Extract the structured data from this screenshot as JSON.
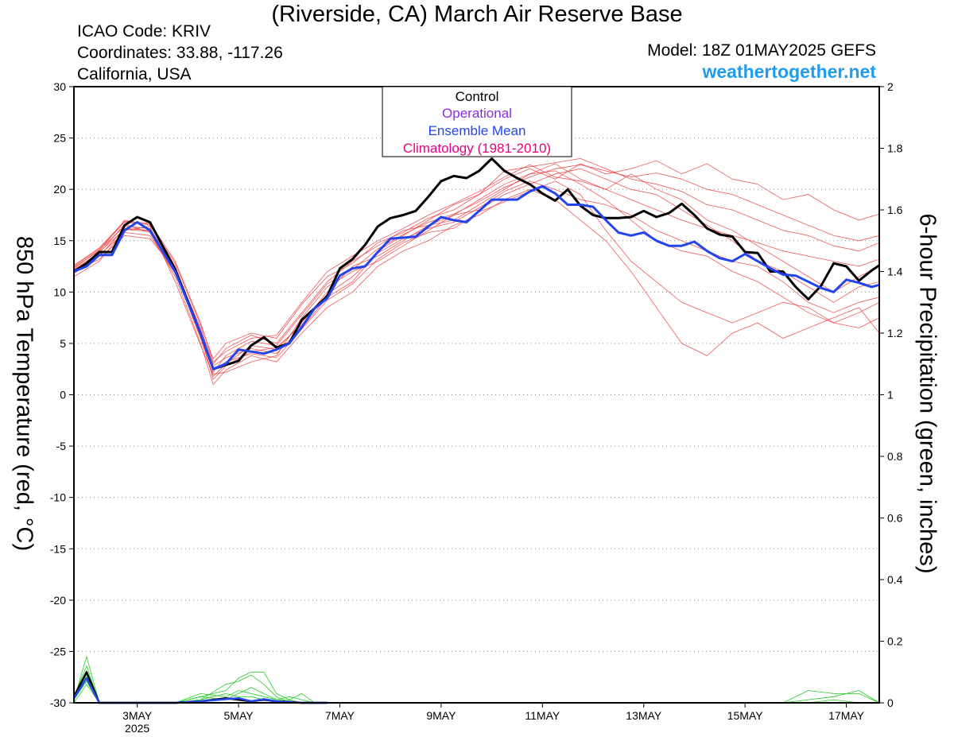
{
  "header": {
    "title": "(Riverside, CA) March Air Reserve Base",
    "icao": "ICAO Code: KRIV",
    "coordinates": "Coordinates: 33.88, -117.26",
    "region": "California, USA",
    "model": "Model: 18Z 01MAY2025 GEFS",
    "site": "weathertogether.net"
  },
  "legend": {
    "control": "Control",
    "operational": "Operational",
    "ensemble_mean": "Ensemble Mean",
    "climatology": "Climatology (1981-2010)"
  },
  "colors": {
    "control": "#000000",
    "operational": "#8a2be2",
    "ensemble_mean": "#2244ee",
    "climatology": "#e6007e",
    "members": "#ee3a3a",
    "precip": "#22cc22",
    "site": "#1e9df0"
  },
  "chart_data": {
    "type": "line",
    "title": "(Riverside, CA) March Air Reserve Base",
    "ylabel": "850 hPa Temperature (red, °C)",
    "y2label": "6-hour Precipitation (green, inches)",
    "ylim": [
      -30,
      30
    ],
    "y2lim": [
      0,
      2
    ],
    "yticks": [
      30,
      25,
      20,
      15,
      10,
      5,
      0,
      -5,
      -10,
      -15,
      -20,
      -25,
      -30
    ],
    "y2ticks": [
      2,
      1.8,
      1.6,
      1.4,
      1.2,
      1,
      0.8,
      0.6,
      0.4,
      0.2,
      0
    ],
    "x_unit": "days since 18Z 01MAY2025",
    "xlim": [
      0,
      15.9
    ],
    "xticks": [
      {
        "x": 1.25,
        "label": "3MAY",
        "sub": "2025"
      },
      {
        "x": 3.25,
        "label": "5MAY",
        "sub": ""
      },
      {
        "x": 5.25,
        "label": "7MAY",
        "sub": ""
      },
      {
        "x": 7.25,
        "label": "9MAY",
        "sub": ""
      },
      {
        "x": 9.25,
        "label": "11MAY",
        "sub": ""
      },
      {
        "x": 11.25,
        "label": "13MAY",
        "sub": ""
      },
      {
        "x": 13.25,
        "label": "15MAY",
        "sub": ""
      },
      {
        "x": 15.25,
        "label": "17MAY",
        "sub": ""
      }
    ],
    "grid": "horizontal dotted",
    "series": [
      {
        "name": "Control",
        "axis": "left",
        "x": [
          0,
          0.25,
          0.5,
          0.75,
          1.0,
          1.25,
          1.5,
          2.0,
          2.5,
          2.75,
          3.0,
          3.25,
          3.5,
          3.75,
          4.0,
          4.25,
          4.5,
          4.75,
          5.0,
          5.25,
          5.5,
          5.75,
          6.0,
          6.25,
          6.5,
          6.75,
          7.0,
          7.25,
          7.5,
          7.75,
          8.0,
          8.25,
          8.5,
          8.75,
          9.0,
          9.25,
          9.5,
          9.75,
          10.0,
          10.25,
          10.5,
          10.75,
          11.0,
          11.25,
          11.5,
          11.75,
          12.0,
          12.25,
          12.5,
          12.75,
          13.0,
          13.25,
          13.5,
          13.75,
          14.0,
          14.25,
          14.5,
          14.75,
          15.0,
          15.25,
          15.5,
          15.75,
          15.9
        ],
        "values": [
          12.0,
          12.8,
          13.9,
          13.9,
          16.5,
          17.3,
          16.8,
          12.2,
          6.0,
          2.5,
          2.9,
          3.3,
          4.8,
          5.6,
          4.6,
          5.0,
          7.3,
          8.4,
          9.6,
          12.3,
          13.2,
          14.6,
          16.4,
          17.2,
          17.5,
          17.9,
          19.3,
          20.8,
          21.3,
          21.1,
          21.8,
          23.0,
          21.8,
          21.1,
          20.5,
          19.6,
          18.9,
          20.0,
          18.4,
          17.5,
          17.2,
          17.2,
          17.3,
          17.9,
          17.3,
          17.7,
          18.6,
          17.5,
          16.2,
          15.6,
          15.4,
          13.9,
          13.8,
          12.0,
          12.0,
          10.5,
          9.3,
          10.6,
          12.8,
          12.5,
          11.1,
          12.1,
          12.6
        ]
      },
      {
        "name": "Ensemble Mean",
        "axis": "left",
        "x": [
          0,
          0.25,
          0.5,
          0.75,
          1.0,
          1.25,
          1.5,
          2.0,
          2.5,
          2.75,
          3.0,
          3.25,
          3.5,
          3.75,
          4.0,
          4.25,
          4.5,
          4.75,
          5.0,
          5.25,
          5.5,
          5.75,
          6.0,
          6.25,
          6.5,
          6.75,
          7.0,
          7.25,
          7.5,
          7.75,
          8.0,
          8.25,
          8.5,
          8.75,
          9.0,
          9.25,
          9.5,
          9.75,
          10.0,
          10.25,
          10.5,
          10.75,
          11.0,
          11.25,
          11.5,
          11.75,
          12.0,
          12.25,
          12.5,
          12.75,
          13.0,
          13.25,
          13.5,
          13.75,
          14.0,
          14.25,
          14.5,
          14.75,
          15.0,
          15.25,
          15.5,
          15.75,
          15.9
        ],
        "values": [
          12.0,
          12.5,
          13.6,
          13.6,
          16.0,
          16.8,
          16.0,
          12.0,
          6.0,
          2.5,
          3.0,
          4.4,
          4.2,
          4.0,
          4.4,
          5.0,
          6.6,
          8.4,
          9.4,
          11.6,
          12.3,
          12.5,
          13.9,
          15.2,
          15.3,
          15.4,
          16.4,
          17.3,
          17.0,
          16.8,
          17.9,
          19.0,
          19.0,
          19.0,
          19.8,
          20.3,
          19.6,
          18.5,
          18.5,
          18.3,
          17.0,
          15.8,
          15.5,
          15.8,
          15.0,
          14.5,
          14.5,
          14.9,
          14.0,
          13.3,
          13.0,
          13.7,
          13.0,
          12.3,
          11.7,
          11.6,
          11.0,
          10.4,
          10.0,
          11.2,
          10.9,
          10.5,
          10.7
        ]
      },
      {
        "name": "",
        "axis": "right",
        "x": [
          0,
          0.25,
          0.5,
          0.75,
          1.0,
          1.5,
          2.0,
          2.5,
          3.0,
          3.25,
          3.5,
          3.75,
          4.0,
          4.25,
          4.5,
          5.0
        ],
        "values": [
          0.02,
          0.1,
          0.0,
          0.0,
          0.0,
          0.0,
          0.0,
          0.005,
          0.015,
          0.01,
          0.005,
          0.01,
          0.005,
          0.003,
          0.0,
          0.0
        ]
      },
      {
        "name": "",
        "axis": "right",
        "x": [
          0,
          0.25,
          0.5,
          0.75,
          1.0,
          1.5,
          2.0,
          2.5,
          3.0,
          3.25,
          3.5,
          3.75,
          4.0,
          4.25,
          4.5,
          5.0
        ],
        "values": [
          0.015,
          0.08,
          0.0,
          0.0,
          0.0,
          0.0,
          0.0,
          0.005,
          0.012,
          0.015,
          0.005,
          0.012,
          0.005,
          0.002,
          0.0,
          0.0
        ]
      }
    ],
    "ensemble_members_temp": {
      "x": [
        0,
        0.5,
        1.0,
        1.5,
        2.0,
        2.5,
        2.75,
        3.0,
        3.5,
        4.0,
        4.5,
        5.0,
        5.5,
        6.0,
        6.5,
        7.0,
        7.5,
        8.0,
        8.5,
        9.0,
        9.5,
        10.0,
        10.5,
        11.0,
        11.5,
        12.0,
        12.5,
        13.0,
        13.5,
        14.0,
        14.5,
        15.0,
        15.5,
        15.9
      ],
      "members": [
        [
          12.5,
          14.2,
          16.8,
          16.6,
          12.5,
          6.0,
          2.8,
          3.6,
          4.5,
          4.0,
          6.5,
          9.5,
          11.0,
          14.0,
          15.5,
          17.0,
          18.5,
          19.5,
          21.0,
          22.0,
          21.0,
          22.5,
          21.5,
          22.0,
          22.8,
          21.5,
          22.5,
          21.0,
          20.5,
          19.0,
          19.5,
          18.0,
          17.0,
          17.6
        ],
        [
          11.8,
          13.5,
          16.2,
          16.0,
          12.0,
          5.5,
          1.8,
          3.0,
          4.8,
          4.4,
          7.0,
          10.0,
          12.5,
          13.5,
          15.0,
          16.5,
          17.0,
          18.5,
          20.0,
          21.5,
          22.5,
          21.0,
          20.0,
          21.5,
          20.0,
          19.0,
          17.0,
          16.0,
          14.5,
          13.0,
          11.5,
          10.0,
          11.5,
          12.5
        ],
        [
          12.2,
          13.8,
          16.6,
          15.8,
          11.5,
          5.0,
          1.0,
          2.4,
          3.8,
          3.2,
          6.0,
          8.5,
          10.0,
          12.5,
          14.0,
          15.0,
          16.5,
          17.5,
          19.0,
          20.0,
          19.0,
          17.0,
          15.0,
          12.0,
          8.5,
          5.0,
          3.8,
          6.0,
          7.0,
          5.5,
          6.5,
          7.5,
          8.5,
          6.0
        ],
        [
          12.0,
          13.2,
          15.5,
          15.2,
          12.2,
          6.5,
          3.0,
          4.5,
          5.8,
          5.0,
          8.0,
          11.0,
          13.0,
          14.5,
          16.0,
          16.5,
          17.5,
          18.0,
          19.5,
          20.5,
          21.5,
          22.0,
          21.0,
          20.0,
          19.5,
          18.0,
          16.5,
          15.0,
          13.0,
          12.0,
          10.5,
          9.0,
          10.5,
          11.0
        ],
        [
          11.5,
          13.0,
          16.0,
          16.4,
          11.0,
          4.8,
          2.0,
          2.2,
          3.2,
          3.8,
          7.5,
          10.5,
          12.0,
          13.0,
          14.5,
          16.0,
          17.5,
          19.0,
          20.5,
          21.5,
          21.8,
          20.5,
          19.0,
          17.0,
          15.0,
          14.0,
          13.5,
          12.0,
          11.0,
          9.5,
          8.0,
          7.0,
          6.5,
          7.5
        ],
        [
          12.4,
          14.0,
          17.0,
          16.5,
          12.8,
          6.8,
          3.5,
          5.0,
          6.0,
          5.5,
          8.8,
          11.5,
          12.8,
          14.8,
          15.8,
          17.2,
          18.0,
          19.5,
          21.8,
          22.2,
          22.6,
          23.0,
          22.0,
          21.0,
          20.5,
          19.8,
          18.5,
          18.0,
          17.0,
          16.0,
          15.5,
          14.5,
          14.0,
          14.8
        ],
        [
          11.9,
          13.6,
          15.8,
          15.5,
          11.8,
          5.8,
          1.5,
          2.8,
          4.2,
          4.6,
          6.8,
          9.8,
          11.5,
          13.8,
          15.2,
          16.2,
          16.8,
          18.2,
          19.8,
          20.8,
          20.0,
          19.0,
          18.5,
          17.5,
          16.0,
          15.0,
          14.0,
          13.0,
          12.5,
          11.0,
          9.0,
          8.0,
          9.0,
          9.5
        ],
        [
          12.3,
          14.1,
          16.4,
          16.2,
          12.4,
          6.2,
          2.2,
          3.8,
          5.2,
          4.8,
          7.8,
          10.8,
          12.2,
          14.2,
          15.6,
          16.8,
          17.6,
          18.8,
          20.2,
          21.2,
          22.0,
          22.4,
          21.8,
          21.2,
          21.6,
          21.0,
          20.0,
          19.5,
          18.5,
          17.5,
          16.5,
          15.5,
          15.0,
          15.5
        ],
        [
          12.1,
          13.9,
          16.1,
          15.9,
          11.9,
          5.6,
          2.4,
          3.2,
          4.0,
          3.6,
          6.4,
          9.2,
          10.8,
          13.2,
          14.8,
          15.8,
          16.2,
          17.8,
          18.8,
          19.8,
          20.8,
          19.5,
          16.0,
          13.0,
          11.0,
          9.0,
          8.0,
          7.0,
          8.0,
          9.0,
          8.5,
          7.0,
          8.0,
          9.0
        ],
        [
          12.6,
          14.3,
          16.9,
          16.7,
          13.0,
          7.0,
          3.2,
          4.2,
          5.5,
          5.8,
          9.0,
          12.0,
          13.5,
          15.0,
          16.2,
          17.5,
          18.6,
          19.8,
          21.2,
          22.4,
          21.2,
          20.8,
          20.0,
          19.0,
          18.0,
          17.0,
          16.2,
          15.5,
          14.8,
          14.0,
          13.5,
          13.0,
          12.5,
          13.2
        ]
      ]
    },
    "ensemble_members_precip": {
      "x": [
        0,
        0.25,
        0.5,
        0.75,
        1.0,
        2.0,
        2.5,
        3.0,
        3.25,
        3.5,
        3.75,
        4.0,
        4.25,
        4.5,
        4.75,
        5.0,
        5.5,
        6.0,
        10.0,
        11.0,
        12.0,
        13.0,
        14.0,
        14.5,
        15.0,
        15.5,
        15.9
      ],
      "members": [
        [
          0.01,
          0.15,
          0.0,
          0.0,
          0.0,
          0.0,
          0.02,
          0.04,
          0.08,
          0.1,
          0.1,
          0.03,
          0.01,
          0.0,
          0.0,
          0.0,
          0.0,
          0.0,
          0.0,
          0.0,
          0.0,
          0.0,
          0.0,
          0.0,
          0.01,
          0.0,
          0.0
        ],
        [
          0.01,
          0.09,
          0.0,
          0.0,
          0.0,
          0.0,
          0.01,
          0.06,
          0.07,
          0.09,
          0.06,
          0.02,
          0.0,
          0.0,
          0.0,
          0.0,
          0.0,
          0.0,
          0.0,
          0.0,
          0.0,
          0.0,
          0.0,
          0.04,
          0.03,
          0.03,
          0.0
        ],
        [
          0.02,
          0.12,
          0.0,
          0.0,
          0.0,
          0.0,
          0.03,
          0.02,
          0.04,
          0.03,
          0.02,
          0.01,
          0.02,
          0.01,
          0.0,
          0.0,
          0.0,
          0.0,
          0.0,
          0.0,
          0.0,
          0.0,
          0.0,
          0.01,
          0.02,
          0.04,
          0.0
        ],
        [
          0.0,
          0.06,
          0.0,
          0.0,
          0.0,
          0.0,
          0.01,
          0.03,
          0.02,
          0.02,
          0.01,
          0.0,
          0.0,
          0.0,
          0.0,
          0.0,
          0.0,
          0.0,
          0.0,
          0.0,
          0.0,
          0.0,
          0.0,
          0.0,
          0.0,
          0.0,
          0.0
        ],
        [
          0.01,
          0.07,
          0.0,
          0.0,
          0.0,
          0.0,
          0.02,
          0.01,
          0.03,
          0.05,
          0.03,
          0.01,
          0.01,
          0.03,
          0.0,
          0.0,
          0.0,
          0.0,
          0.0,
          0.0,
          0.0,
          0.0,
          0.0,
          0.0,
          0.0,
          0.0,
          0.0
        ]
      ]
    }
  }
}
